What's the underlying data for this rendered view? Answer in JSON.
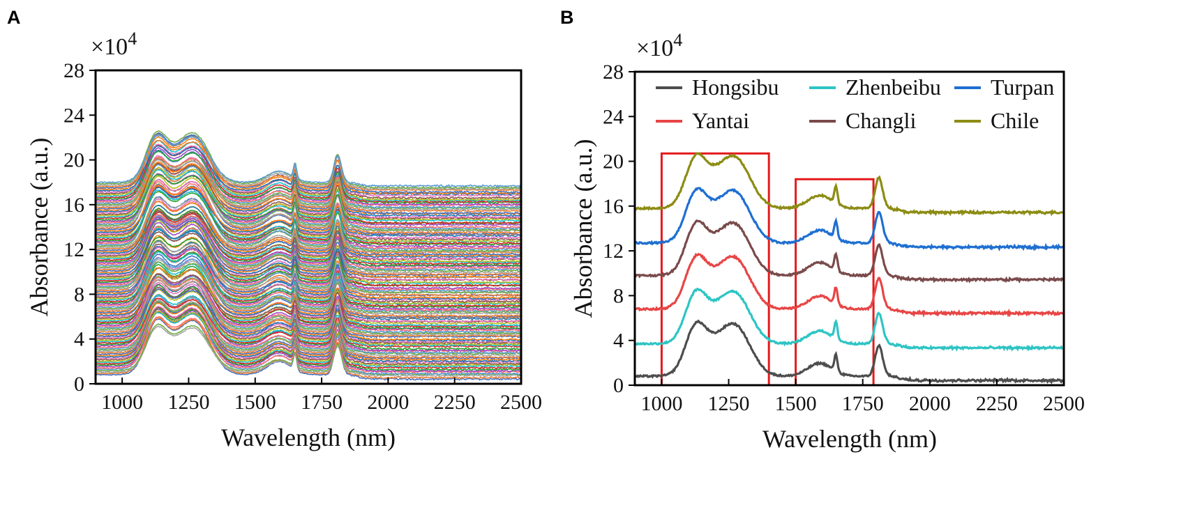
{
  "panels": {
    "a_label": "A",
    "b_label": "B"
  },
  "chart_data": [
    {
      "panel": "A",
      "type": "line",
      "title": "",
      "xlabel": "Wavelength (nm)",
      "ylabel": "Absorbance (a.u.)",
      "multiplier": "×10^4",
      "multiplier_base": "×10",
      "multiplier_exp": "4",
      "xlim": [
        900,
        2500
      ],
      "ylim": [
        0,
        28
      ],
      "xticks": [
        1000,
        1250,
        1500,
        1750,
        2000,
        2250,
        2500
      ],
      "yticks": [
        0,
        4,
        8,
        12,
        16,
        20,
        24,
        28
      ],
      "grid": false,
      "spectra_count": 140,
      "offset_range": [
        0.8,
        18
      ],
      "description_series": "stacked NIR spectra of many samples",
      "palette": [
        "#4472c4",
        "#ed7d31",
        "#a5a5a5",
        "#70ad47",
        "#5b9bd5",
        "#ff6f6f",
        "#9e48c8",
        "#2ca02c",
        "#d62728",
        "#17becf",
        "#bcbd22",
        "#8c564b",
        "#e377c2",
        "#1f77b4",
        "#ff7f0e"
      ]
    },
    {
      "panel": "B",
      "type": "line",
      "title": "",
      "xlabel": "Wavelength (nm)",
      "ylabel": "Absorbance (a.u.)",
      "multiplier": "×10^4",
      "multiplier_base": "×10",
      "multiplier_exp": "4",
      "xlim": [
        900,
        2500
      ],
      "ylim": [
        0,
        28
      ],
      "xticks": [
        1000,
        1250,
        1500,
        1750,
        2000,
        2250,
        2500
      ],
      "yticks": [
        0,
        4,
        8,
        12,
        16,
        20,
        24,
        28
      ],
      "grid": false,
      "legend_position": "top",
      "series": [
        {
          "name": "Hongsibu",
          "color": "#4d4d4d",
          "offset": 0.8
        },
        {
          "name": "Zhenbeibu",
          "color": "#2ec4c4",
          "offset": 3.7
        },
        {
          "name": "Turpan",
          "color": "#1f6fd1",
          "offset": 12.7
        },
        {
          "name": "Yantai",
          "color": "#e84545",
          "offset": 6.8
        },
        {
          "name": "Changli",
          "color": "#7a4a4a",
          "offset": 9.8
        },
        {
          "name": "Chile",
          "color": "#8c8c14",
          "offset": 15.8
        }
      ],
      "annotations": [
        {
          "type": "rectangle",
          "color": "#e31a1c",
          "x_range": [
            1000,
            1400
          ],
          "y_range": [
            0,
            20.7
          ]
        },
        {
          "type": "rectangle",
          "color": "#e31a1c",
          "x_range": [
            1500,
            1790
          ],
          "y_range": [
            0,
            18.4
          ]
        }
      ]
    }
  ],
  "colors": {
    "axis": "#000000",
    "highlight_box": "#e31a1c"
  }
}
